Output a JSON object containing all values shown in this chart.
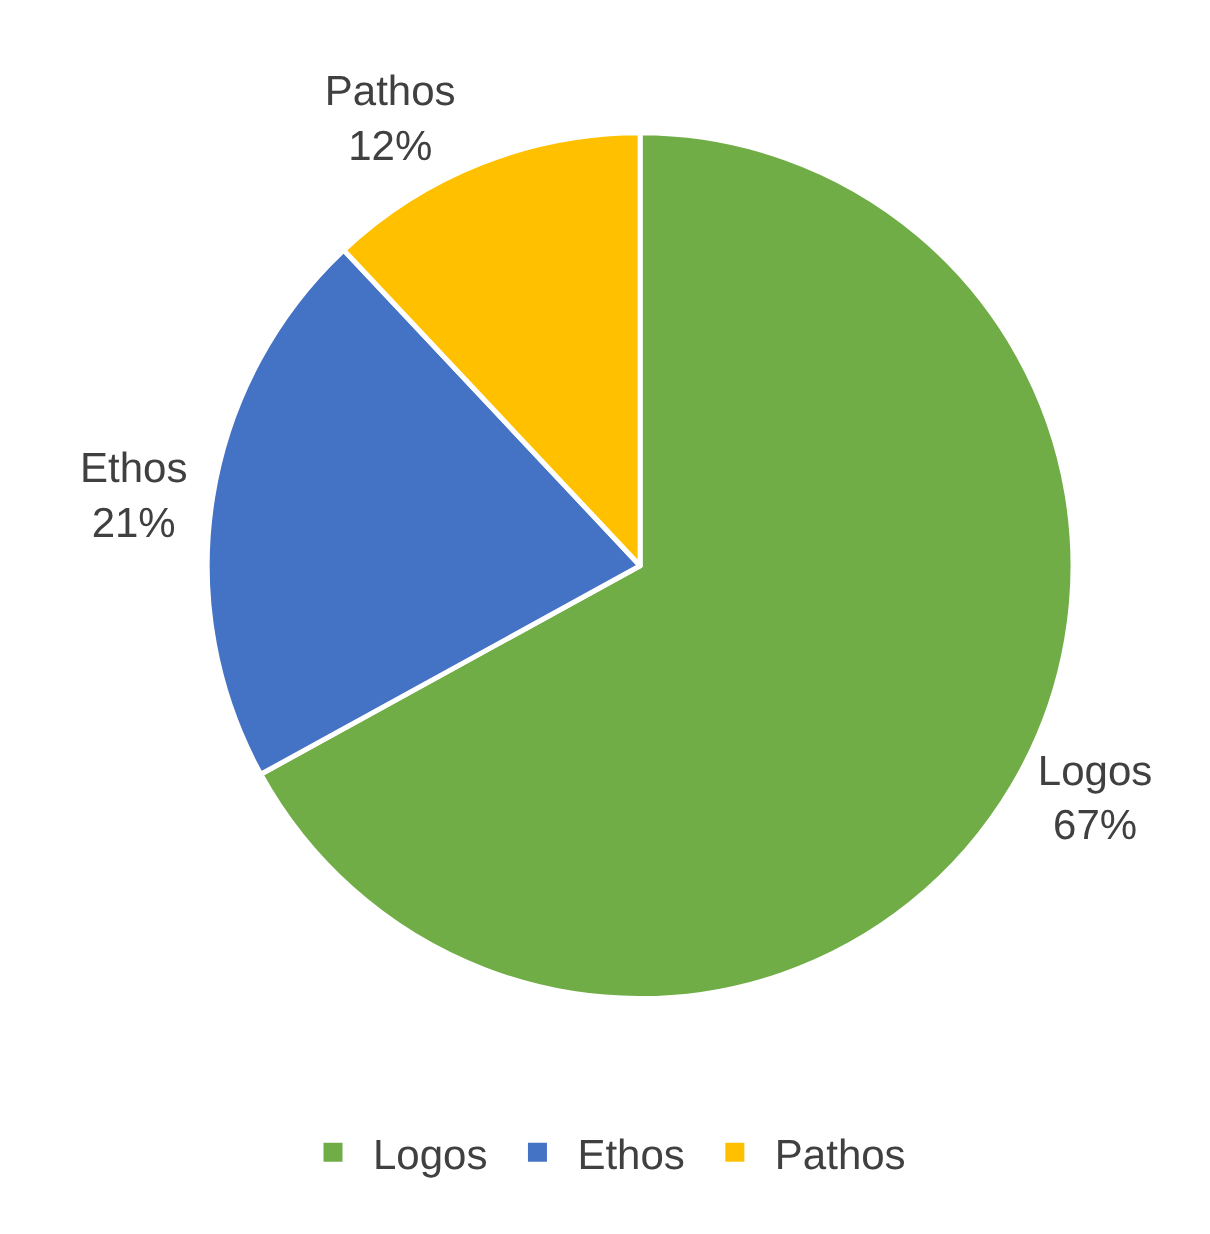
{
  "chart_data": {
    "type": "pie",
    "categories": [
      "Logos",
      "Ethos",
      "Pathos"
    ],
    "values": [
      67,
      21,
      12
    ],
    "colors": [
      "#70ad47",
      "#4472c4",
      "#ffc000"
    ],
    "value_labels": [
      "67%",
      "21%",
      "12%"
    ],
    "legend": "bottom"
  }
}
